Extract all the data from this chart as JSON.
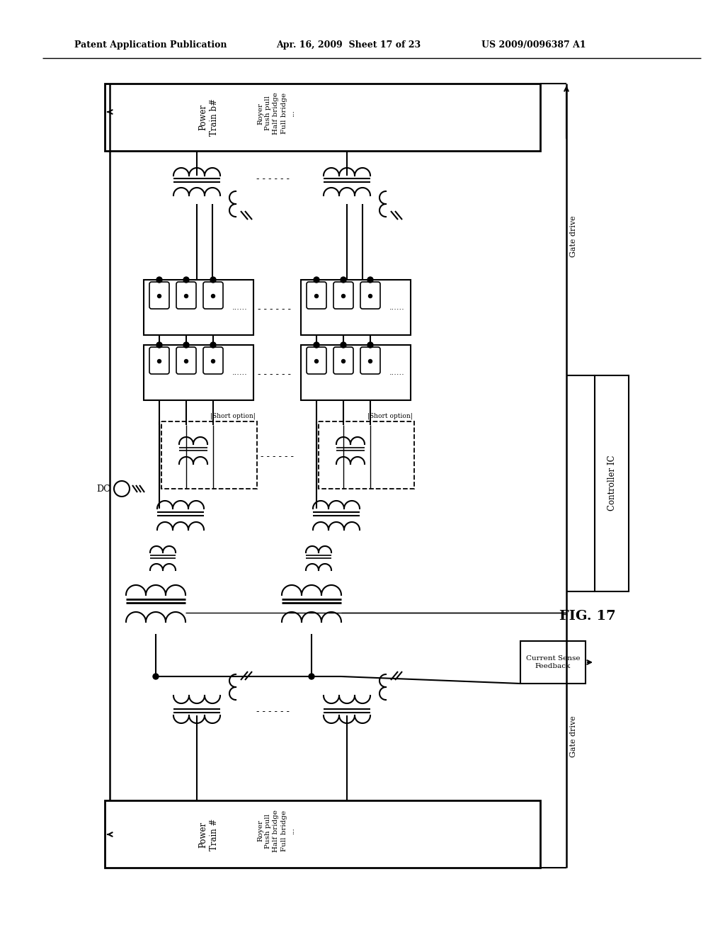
{
  "bg_color": "#ffffff",
  "header_left": "Patent Application Publication",
  "header_mid": "Apr. 16, 2009  Sheet 17 of 23",
  "header_right": "US 2009/0096387 A1",
  "fig_label": "FIG. 17",
  "gate_drive_top": "Gate drive",
  "gate_drive_bot": "Gate drive",
  "controller_label": "Controller IC",
  "current_sense_label": "Current Sense\nFeedback",
  "dc_label": "DC"
}
